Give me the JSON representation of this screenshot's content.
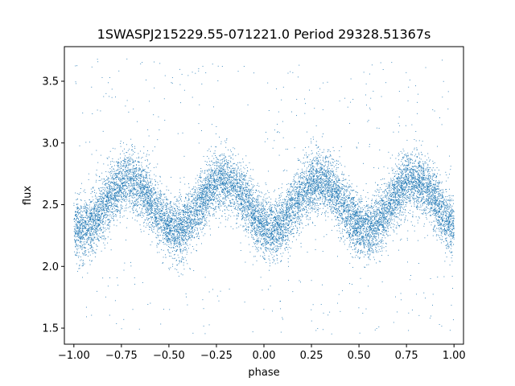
{
  "chart_data": {
    "type": "scatter",
    "title": "1SWASPJ215229.55-071221.0 Period 29328.51367s",
    "xlabel": "phase",
    "ylabel": "flux",
    "xlim": [
      -1.05,
      1.05
    ],
    "ylim": [
      1.37,
      3.78
    ],
    "xticks": [
      -1.0,
      -0.75,
      -0.5,
      -0.25,
      0.0,
      0.25,
      0.5,
      0.75,
      1.0
    ],
    "xtick_labels": [
      "−1.00",
      "−0.75",
      "−0.50",
      "−0.25",
      "0.00",
      "0.25",
      "0.50",
      "0.75",
      "1.00"
    ],
    "yticks": [
      1.5,
      2.0,
      2.5,
      3.0,
      3.5
    ],
    "ytick_labels": [
      "1.5",
      "2.0",
      "2.5",
      "3.0",
      "3.5"
    ],
    "grid": false,
    "marker_color": "#1f77b4",
    "series": [
      {
        "x_range": [
          -1.0,
          1.0
        ],
        "mean_flux": 2.5,
        "amplitude": 0.2,
        "cycles_per_unit_phase": 2,
        "peak_phases": [
          -0.71,
          -0.2,
          0.29,
          0.8
        ],
        "trough_phases": [
          -0.96,
          -0.45,
          0.04,
          0.55
        ],
        "typical_scatter": 0.12,
        "outlier_flux_range": [
          1.45,
          3.7
        ]
      }
    ]
  }
}
